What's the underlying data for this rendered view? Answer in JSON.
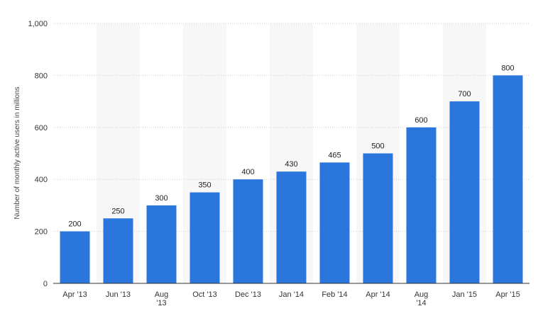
{
  "chart_data": {
    "type": "bar",
    "title": "",
    "xlabel": "",
    "ylabel": "Number of monthly active users in millions",
    "categories": [
      "Apr '13",
      "Jun '13",
      "Aug '13",
      "Oct '13",
      "Dec '13",
      "Jan '14",
      "Feb '14",
      "Apr '14",
      "Aug '14",
      "Jan '15",
      "Apr '15"
    ],
    "values": [
      200,
      250,
      300,
      350,
      400,
      430,
      465,
      500,
      600,
      700,
      800
    ],
    "data_labels": [
      "200",
      "250",
      "300",
      "350",
      "400",
      "430",
      "465",
      "500",
      "600",
      "700",
      "800"
    ],
    "ylim": [
      0,
      1000
    ],
    "y_ticks": [
      0,
      200,
      400,
      600,
      800,
      1000
    ],
    "y_tick_labels": [
      "0",
      "200",
      "400",
      "600",
      "800",
      "1,000"
    ],
    "grid": true,
    "legend": "none",
    "colors": {
      "bar": "#2a76dd",
      "band": "#f7f7f7",
      "grid": "#cfcfcf",
      "axis": "#333333"
    }
  }
}
